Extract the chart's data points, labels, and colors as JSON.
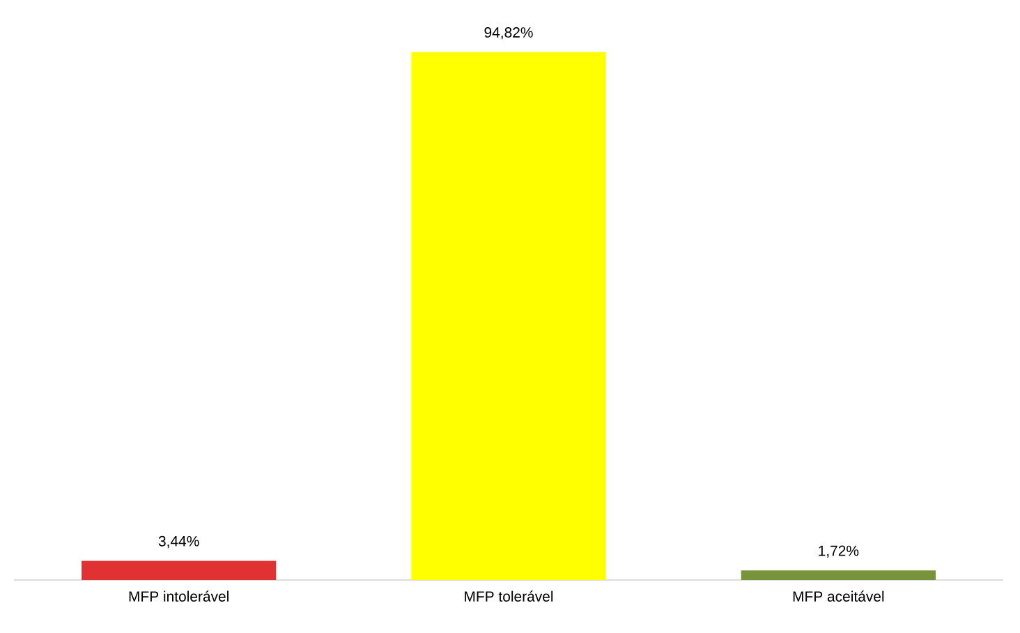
{
  "chart_data": {
    "type": "bar",
    "categories": [
      "MFP intolerável",
      "MFP tolerável",
      "MFP aceitável"
    ],
    "values": [
      3.44,
      94.82,
      1.72
    ],
    "colors": [
      "#e03232",
      "#ffff00",
      "#77933c"
    ],
    "value_labels": [
      "3,44%",
      "94,82%",
      "1,72%"
    ],
    "grid": false
  }
}
